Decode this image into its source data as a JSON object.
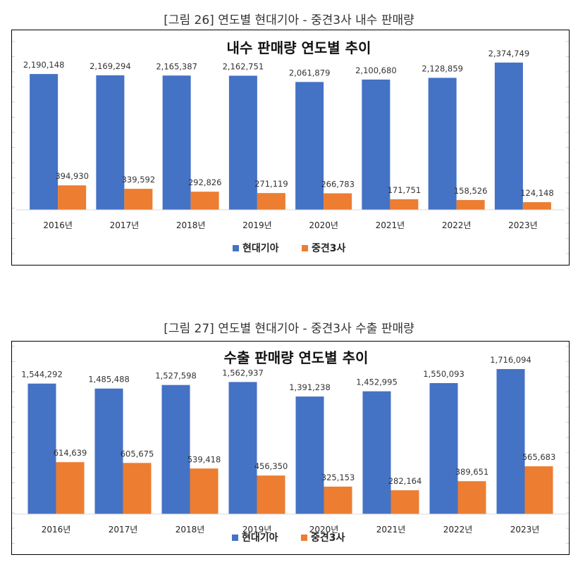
{
  "figures": [
    {
      "caption": "[그림 26] 연도별 현대기아 - 중견3사 내수 판매량",
      "chart_title": "내수 판매량 연도별 추이"
    },
    {
      "caption": "[그림 27] 연도별 현대기아 - 중견3사 수출 판매량",
      "chart_title": "수출 판매량 연도별 추이"
    }
  ],
  "colors": {
    "hyundai_kia": "#4472C4",
    "mid3": "#ED7D31"
  },
  "chart_data": [
    {
      "type": "bar",
      "title": "내수 판매량 연도별 추이",
      "xlabel": "",
      "ylabel": "",
      "categories": [
        "2016년",
        "2017년",
        "2018년",
        "2019년",
        "2020년",
        "2021년",
        "2022년",
        "2023년"
      ],
      "ylim": [
        0,
        2600000
      ],
      "legend_position": "bottom",
      "series": [
        {
          "name": "현대기아",
          "color": "#4472C4",
          "values": [
            2190148,
            2169294,
            2165387,
            2162751,
            2061879,
            2100680,
            2128859,
            2374749
          ],
          "labels": [
            "2,190,148",
            "2,169,294",
            "2,165,387",
            "2,162,751",
            "2,061,879",
            "2,100,680",
            "2,128,859",
            "2,374,749"
          ]
        },
        {
          "name": "중견3사",
          "color": "#ED7D31",
          "values": [
            394930,
            339592,
            292826,
            271119,
            266783,
            171751,
            158526,
            124148
          ],
          "labels": [
            "394,930",
            "339,592",
            "292,826",
            "271,119",
            "266,783",
            "171,751",
            "158,526",
            "124,148"
          ]
        }
      ]
    },
    {
      "type": "bar",
      "title": "수출 판매량 연도별 추이",
      "xlabel": "",
      "ylabel": "",
      "categories": [
        "2016년",
        "2017년",
        "2018년",
        "2019년",
        "2020년",
        "2021년",
        "2022년",
        "2023년"
      ],
      "ylim": [
        0,
        1900000
      ],
      "legend_position": "bottom",
      "series": [
        {
          "name": "현대기아",
          "color": "#4472C4",
          "values": [
            1544292,
            1485488,
            1527598,
            1562937,
            1391238,
            1452995,
            1550093,
            1716094
          ],
          "labels": [
            "1,544,292",
            "1,485,488",
            "1,527,598",
            "1,562,937",
            "1,391,238",
            "1,452,995",
            "1,550,093",
            "1,716,094"
          ]
        },
        {
          "name": "중견3사",
          "color": "#ED7D31",
          "values": [
            614639,
            605675,
            539418,
            456350,
            325153,
            282164,
            389651,
            565683
          ],
          "labels": [
            "614,639",
            "605,675",
            "539,418",
            "456,350",
            "325,153",
            "282,164",
            "389,651",
            "565,683"
          ]
        }
      ]
    }
  ]
}
